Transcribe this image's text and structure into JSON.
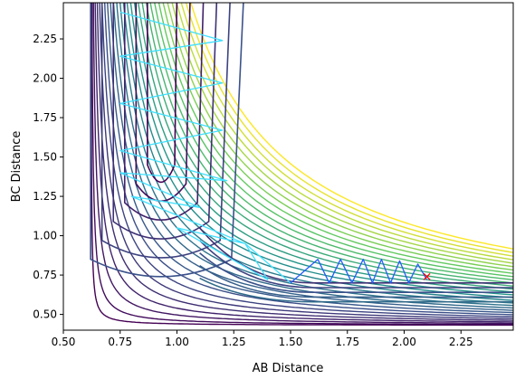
{
  "chart_data": {
    "type": "contour",
    "title": "",
    "xlabel": "AB Distance",
    "ylabel": "BC Distance",
    "xlim": [
      0.5,
      2.48
    ],
    "ylim": [
      0.4,
      2.48
    ],
    "xticks": [
      0.5,
      0.75,
      1.0,
      1.25,
      1.5,
      1.75,
      2.0,
      2.25
    ],
    "xtick_labels": [
      "0.50",
      "0.75",
      "1.00",
      "1.25",
      "1.50",
      "1.75",
      "2.00",
      "2.25"
    ],
    "yticks": [
      0.5,
      0.75,
      1.0,
      1.25,
      1.5,
      1.75,
      2.0,
      2.25
    ],
    "ytick_labels": [
      "0.50",
      "0.75",
      "1.00",
      "1.25",
      "1.50",
      "1.75",
      "2.00",
      "2.25"
    ],
    "grid": false,
    "legend": "none",
    "colormap": "viridis",
    "contour_count": 30,
    "surface": {
      "x_asymptote": 0.62,
      "y_asymptote": 0.43,
      "valley_floor_y": 0.7,
      "inner_wall_x": 0.85
    },
    "trajectories": [
      {
        "name_hidden": true,
        "color": "#41e0ff",
        "points": [
          [
            0.75,
            2.42
          ],
          [
            1.2,
            2.24
          ],
          [
            0.75,
            2.14
          ],
          [
            1.2,
            1.97
          ],
          [
            0.75,
            1.84
          ],
          [
            1.2,
            1.67
          ],
          [
            0.75,
            1.54
          ],
          [
            1.22,
            1.35
          ],
          [
            0.75,
            1.4
          ],
          [
            1.1,
            1.18
          ],
          [
            0.8,
            1.25
          ],
          [
            1.3,
            0.95
          ],
          [
            1.0,
            1.05
          ],
          [
            1.4,
            0.72
          ],
          [
            1.3,
            0.95
          ],
          [
            1.5,
            0.7
          ]
        ]
      },
      {
        "name_hidden": true,
        "color": "#1f5fff",
        "points": [
          [
            1.5,
            0.7
          ],
          [
            1.62,
            0.85
          ],
          [
            1.67,
            0.7
          ],
          [
            1.72,
            0.85
          ],
          [
            1.77,
            0.7
          ],
          [
            1.82,
            0.85
          ],
          [
            1.86,
            0.7
          ],
          [
            1.9,
            0.85
          ],
          [
            1.94,
            0.7
          ],
          [
            1.98,
            0.84
          ],
          [
            2.02,
            0.7
          ],
          [
            2.06,
            0.82
          ],
          [
            2.1,
            0.72
          ]
        ]
      }
    ],
    "end_marker": {
      "x": 2.1,
      "y": 0.74,
      "symbol": "x",
      "color": "#ff0000"
    }
  }
}
